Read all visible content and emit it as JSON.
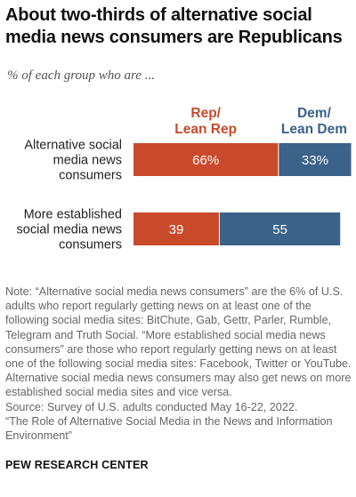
{
  "title": "About two-thirds of alternative social media news consumers are Republicans",
  "subtitle": "% of each group who are ...",
  "colors": {
    "rep": "#C94A2B",
    "dem": "#3B6289",
    "rep_label": "#C94A2B",
    "dem_label": "#3B6289"
  },
  "chart_data": {
    "type": "bar",
    "orientation": "horizontal",
    "stacked": true,
    "categories": [
      [
        "Alternative social",
        "media news",
        "consumers"
      ],
      [
        "More established",
        "social media news",
        "consumers"
      ]
    ],
    "series": [
      {
        "name": "Rep/ Lean Rep",
        "label_lines": [
          "Rep/",
          "Lean Rep"
        ],
        "values": [
          66,
          39
        ],
        "data_labels": [
          "66%",
          "39"
        ]
      },
      {
        "name": "Dem/ Lean Dem",
        "label_lines": [
          "Dem/",
          "Lean Dem"
        ],
        "values": [
          33,
          55
        ],
        "data_labels": [
          "33%",
          "55"
        ]
      }
    ],
    "xlim": [
      0,
      100
    ],
    "grid": false,
    "legend": "top"
  },
  "note": {
    "text": "Note: “Alternative social media news consumers” are the 6% of U.S. adults who report regularly getting news on at least one of the following social media sites: BitChute, Gab, Gettr, Parler, Rumble, Telegram and Truth Social. “More established social media news consumers” are those who report regularly getting news on at least one of the following social media sites: Facebook, Twitter or YouTube. Alternative social media news consumers may also get news on more established social media sites and vice versa.",
    "source": "Source: Survey of U.S. adults conducted May 16-22, 2022.",
    "report": "“The Role of Alternative Social Media in the News and Information Environment”"
  },
  "brand": "PEW RESEARCH CENTER"
}
